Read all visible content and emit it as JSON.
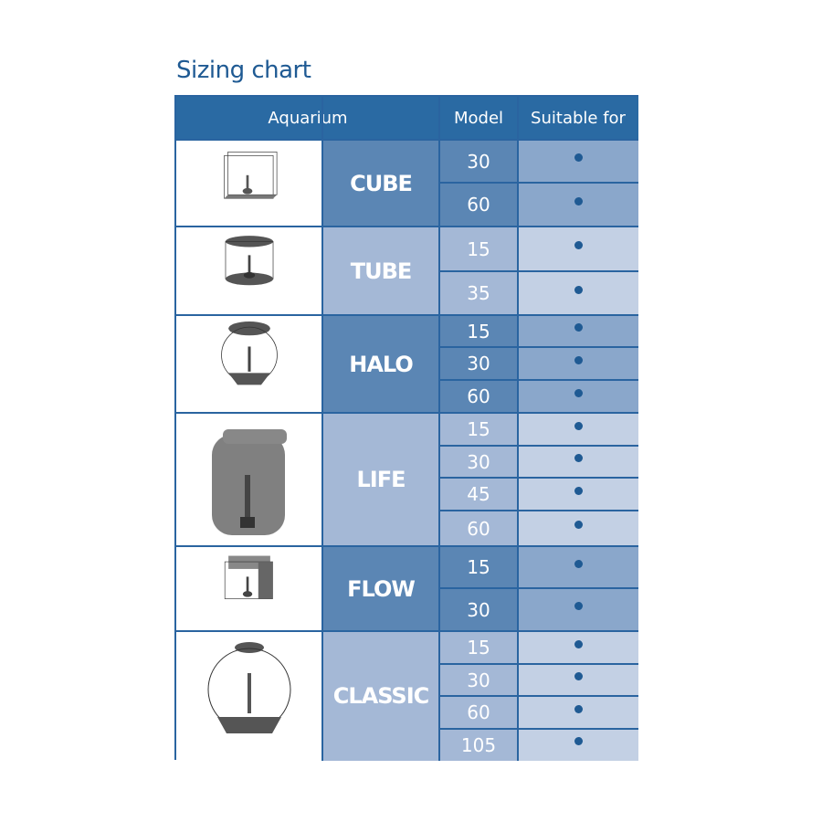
{
  "title": "Sizing chart",
  "headers": {
    "aquarium": "Aquarium",
    "model": "Model",
    "suitable": "Suitable for"
  },
  "colors": {
    "header": "#2a6aa3",
    "dark_group": "#5b86b4",
    "dark_suitable": "#8aa7cb",
    "light_group": "#a4b8d6",
    "light_suitable": "#c3d0e4",
    "dot": "#1f5a93"
  },
  "groups": [
    {
      "name": "CUBE",
      "icon": "cube-aquarium-icon",
      "shade": "dark",
      "models": [
        "30",
        "60"
      ],
      "suitable": [
        true,
        true
      ]
    },
    {
      "name": "TUBE",
      "icon": "tube-aquarium-icon",
      "shade": "light",
      "models": [
        "15",
        "35"
      ],
      "suitable": [
        true,
        true
      ]
    },
    {
      "name": "HALO",
      "icon": "halo-aquarium-icon",
      "shade": "dark",
      "models": [
        "15",
        "30",
        "60"
      ],
      "suitable": [
        true,
        true,
        true
      ]
    },
    {
      "name": "LIFE",
      "icon": "life-aquarium-icon",
      "shade": "light",
      "models": [
        "15",
        "30",
        "45",
        "60"
      ],
      "suitable": [
        true,
        true,
        true,
        true
      ]
    },
    {
      "name": "FLOW",
      "icon": "flow-aquarium-icon",
      "shade": "dark",
      "models": [
        "15",
        "30"
      ],
      "suitable": [
        true,
        true
      ]
    },
    {
      "name": "CLASSIC",
      "icon": "classic-aquarium-icon",
      "shade": "light",
      "models": [
        "15",
        "30",
        "60",
        "105"
      ],
      "suitable": [
        true,
        true,
        true,
        true
      ]
    }
  ]
}
